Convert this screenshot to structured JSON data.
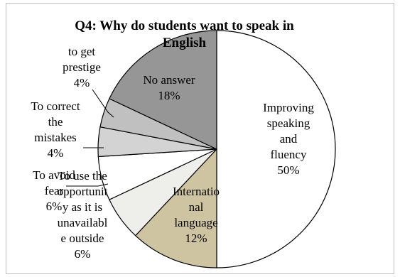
{
  "chart_data": {
    "type": "pie",
    "title_lines": [
      "Q4: Why do students want to speak in",
      "English"
    ],
    "slices": [
      {
        "name": "Improving speaking and fluency",
        "value": 50,
        "color": "#ffffff",
        "label_lines": [
          "Improving",
          "speaking",
          "and",
          "fluency",
          "50%"
        ]
      },
      {
        "name": "International language",
        "value": 12,
        "color": "#cfc4a2",
        "label_lines": [
          "Internatio",
          "nal",
          "language",
          "12%"
        ]
      },
      {
        "name": "To use the opportunity as it is unavailable outside",
        "value": 6,
        "color": "#eeeeea",
        "label_lines": [
          "To use the",
          "opportunit",
          "y as it is",
          "unavailabl",
          "e outside",
          "6%"
        ]
      },
      {
        "name": "To avoid fear",
        "value": 6,
        "color": "#ffffff",
        "label_lines": [
          "To avoid",
          "fear",
          "6%"
        ]
      },
      {
        "name": "To correct the mistakes",
        "value": 4,
        "color": "#d3d3d3",
        "label_lines": [
          "To correct",
          "the",
          "mistakes",
          "4%"
        ]
      },
      {
        "name": "to get prestige",
        "value": 4,
        "color": "#c0c0c0",
        "label_lines": [
          "to get",
          "prestige",
          "4%"
        ]
      },
      {
        "name": "No answer",
        "value": 18,
        "color": "#969696",
        "label_lines": [
          "No answer",
          "18%"
        ]
      }
    ]
  }
}
